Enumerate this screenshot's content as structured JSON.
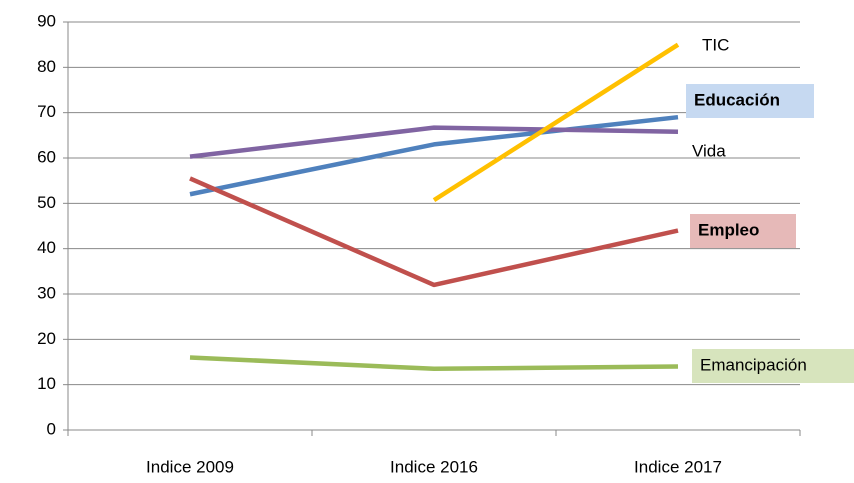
{
  "chart_data": {
    "type": "line",
    "categories": [
      "Indice 2009",
      "Indice 2016",
      "Indice 2017"
    ],
    "series": [
      {
        "name": "Educación",
        "color": "#4f81bd",
        "values": [
          52,
          63,
          69
        ]
      },
      {
        "name": "Vida",
        "color": "#8064a2",
        "values": [
          60.3,
          66.7,
          65.8
        ]
      },
      {
        "name": "Empleo",
        "color": "#c0504d",
        "values": [
          55.5,
          32,
          44
        ]
      },
      {
        "name": "Emancipación",
        "color": "#9bbb59",
        "values": [
          16,
          13.5,
          14
        ]
      },
      {
        "name": "TIC",
        "color": "#ffc000",
        "values": [
          null,
          50.7,
          85
        ]
      }
    ],
    "ylim": [
      0,
      90
    ],
    "yticks": [
      0,
      10,
      20,
      30,
      40,
      50,
      60,
      70,
      80,
      90
    ],
    "grid": true
  }
}
